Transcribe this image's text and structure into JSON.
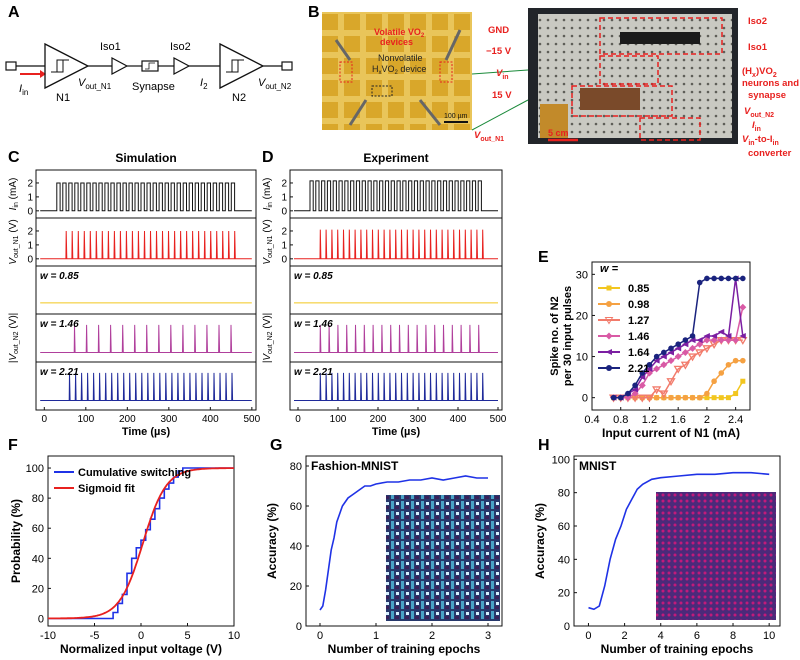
{
  "panel_labels": {
    "A": "A",
    "B": "B",
    "C": "C",
    "D": "D",
    "E": "E",
    "F": "F",
    "G": "G",
    "H": "H"
  },
  "schematic": {
    "input_label": "I",
    "input_sub": "in",
    "n1": "N1",
    "vout1": "V",
    "vout1_sub": "out_N1",
    "iso1": "Iso1",
    "synapse": "Synapse",
    "iso2": "Iso2",
    "i2": "I",
    "i2_sub": "2",
    "n2": "N2",
    "vout2": "V",
    "vout2_sub": "out_N2"
  },
  "photo": {
    "micro_label1": "Volatile VO",
    "micro_label1b": "devices",
    "micro_label2": "Nonvolatile",
    "micro_label2b": "H",
    "micro_label2c": "VO",
    "micro_label2d": " device",
    "scale_micro": "100 µm",
    "board_labels_left": [
      "GND",
      "−15 V",
      "V",
      "15 V",
      "V"
    ],
    "board_vin_sub": "in",
    "board_vout_sub": "out_N1",
    "board_labels_right": [
      "Iso2",
      "Iso1",
      "(H",
      "neurons and",
      "synapse",
      "V",
      "I",
      "V",
      "converter"
    ],
    "hx": "x",
    "vo2": ")VO",
    "vout_n2_sub": "out_N2",
    "iin_sub": "in",
    "vin_to": "in",
    "to_iin": "-to-I",
    "scale_board": "5 cm"
  },
  "colors": {
    "red": "#e8211f",
    "black": "#111111",
    "yellow": "#f2c61f",
    "magenta": "#b03f9c",
    "blue": "#1f2a9a",
    "orange": "#f5a142",
    "coral": "#f27b6b",
    "pink": "#d95aa5",
    "purple": "#7b1fa2",
    "navy": "#1a237e",
    "line_blue": "#1f32e6"
  },
  "chart_data": [
    {
      "panel": "C",
      "type": "line",
      "title": "Simulation",
      "xlabel": "Time (µs)",
      "xlim": [
        -20,
        510
      ],
      "xticks": [
        0,
        100,
        200,
        300,
        400,
        500
      ],
      "rows": [
        {
          "name": "Iin",
          "ylabel": "I",
          "ysub": "in",
          "yunit": " (mA)",
          "yticks": [
            0,
            1,
            2
          ],
          "ylim": [
            -0.3,
            2.5
          ],
          "color": "#111111",
          "pulse_start": 30,
          "pulse_end": 465,
          "period": 14.5,
          "amp": 2.0,
          "kind": "square"
        },
        {
          "name": "Vout_N1",
          "ylabel": "V",
          "ysub": "out_N1",
          "yunit": " (V)",
          "yticks": [
            0,
            1,
            2
          ],
          "ylim": [
            -0.3,
            2.5
          ],
          "color": "#e8211f",
          "pulse_start": 52,
          "pulse_end": 470,
          "period": 14.5,
          "amp": 2.0,
          "kind": "spike"
        },
        {
          "name": "w=0.85",
          "ylabel": "",
          "ysub": "",
          "yunit": "",
          "yticks": [],
          "ylim": [
            -0.2,
            1
          ],
          "color": "#f2c61f",
          "label": "w = 0.85",
          "kind": "flat"
        },
        {
          "name": "w=1.46",
          "ylabel": "|V",
          "ysub": "out_N2",
          "yunit": " (V)|",
          "yticks": [],
          "ylim": [
            -0.2,
            1
          ],
          "color": "#b03f9c",
          "label": "w = 1.46",
          "pulse_start": 72,
          "pulse_end": 460,
          "period": 29,
          "amp": 0.85,
          "kind": "spike"
        },
        {
          "name": "w=2.21",
          "ylabel": "",
          "ysub": "",
          "yunit": "",
          "yticks": [],
          "ylim": [
            -0.2,
            1
          ],
          "color": "#1f2a9a",
          "label": "w = 2.21",
          "pulse_start": 60,
          "pulse_end": 465,
          "period": 14.5,
          "amp": 0.85,
          "kind": "spike"
        }
      ]
    },
    {
      "panel": "D",
      "type": "line",
      "title": "Experiment",
      "xlabel": "Time (µs)",
      "xlim": [
        -20,
        510
      ],
      "xticks": [
        0,
        100,
        200,
        300,
        400,
        500
      ],
      "rows": [
        {
          "name": "Iin",
          "ylabel": "I",
          "ysub": "in",
          "yunit": " (mA)",
          "yticks": [
            0,
            1,
            2
          ],
          "ylim": [
            -0.3,
            2.5
          ],
          "color": "#111111",
          "pulse_start": 30,
          "pulse_end": 465,
          "period": 14.5,
          "amp": 2.15,
          "kind": "square"
        },
        {
          "name": "Vout_N1",
          "ylabel": "V",
          "ysub": "out_N1",
          "yunit": " (V)",
          "yticks": [
            0,
            1,
            2
          ],
          "ylim": [
            -0.3,
            2.5
          ],
          "color": "#e8211f",
          "pulse_start": 55,
          "pulse_end": 470,
          "period": 14.5,
          "amp": 2.1,
          "kind": "spike"
        },
        {
          "name": "w=0.85",
          "ylabel": "",
          "ysub": "",
          "yunit": "",
          "yticks": [],
          "ylim": [
            -0.2,
            1
          ],
          "color": "#f2c61f",
          "label": "w = 0.85",
          "kind": "flat"
        },
        {
          "name": "w=1.46",
          "ylabel": "|V",
          "ysub": "out_N2",
          "yunit": " (V)|",
          "yticks": [],
          "ylim": [
            -0.2,
            1
          ],
          "color": "#b03f9c",
          "label": "w = 1.46",
          "pulse_start": 55,
          "pulse_end": 465,
          "period": 22,
          "amp": 0.85,
          "kind": "spike"
        },
        {
          "name": "w=2.21",
          "ylabel": "",
          "ysub": "",
          "yunit": "",
          "yticks": [],
          "ylim": [
            -0.2,
            1
          ],
          "color": "#1f2a9a",
          "label": "w = 2.21",
          "pulse_start": 55,
          "pulse_end": 465,
          "period": 14.5,
          "amp": 0.85,
          "kind": "spike"
        }
      ]
    },
    {
      "panel": "E",
      "type": "line",
      "title": "",
      "legend_title": "w =",
      "xlabel": "Input current of N1 (mA)",
      "ylabel": "Spike no. of N2",
      "ylabel2": "per 30 input pulses",
      "xlim": [
        0.4,
        2.6
      ],
      "ylim": [
        -3,
        33
      ],
      "xticks": [
        0.4,
        0.8,
        1.2,
        1.6,
        2.0,
        2.4
      ],
      "yticks": [
        0,
        10,
        20,
        30
      ],
      "series": [
        {
          "name": "0.85",
          "color": "#f2c61f",
          "marker": "square",
          "x": [
            0.7,
            0.8,
            0.9,
            1.0,
            1.1,
            1.2,
            1.3,
            1.4,
            1.5,
            1.6,
            1.7,
            1.8,
            1.9,
            2.0,
            2.1,
            2.2,
            2.3,
            2.4,
            2.5
          ],
          "y": [
            0,
            0,
            0,
            0,
            0,
            0,
            0,
            0,
            0,
            0,
            0,
            0,
            0,
            0,
            0,
            0,
            0,
            1,
            4
          ]
        },
        {
          "name": "0.98",
          "color": "#f5a142",
          "marker": "circle",
          "x": [
            0.7,
            0.8,
            0.9,
            1.0,
            1.1,
            1.2,
            1.3,
            1.4,
            1.5,
            1.6,
            1.7,
            1.8,
            1.9,
            2.0,
            2.1,
            2.2,
            2.3,
            2.4,
            2.5
          ],
          "y": [
            0,
            0,
            0,
            0,
            0,
            0,
            0,
            0,
            0,
            0,
            0,
            0,
            0,
            1,
            4,
            6,
            8,
            9,
            9
          ]
        },
        {
          "name": "1.27",
          "color": "#f27b6b",
          "marker": "tri-down",
          "x": [
            0.7,
            0.8,
            0.9,
            1.0,
            1.1,
            1.2,
            1.3,
            1.4,
            1.5,
            1.6,
            1.7,
            1.8,
            1.9,
            2.0,
            2.1,
            2.2,
            2.3,
            2.4,
            2.5
          ],
          "y": [
            0,
            0,
            0,
            0,
            0,
            0,
            2,
            1,
            4,
            7,
            8,
            10,
            11,
            12,
            13,
            14,
            14,
            14,
            14
          ]
        },
        {
          "name": "1.46",
          "color": "#d95aa5",
          "marker": "diamond",
          "x": [
            0.7,
            0.8,
            0.9,
            1.0,
            1.1,
            1.2,
            1.3,
            1.4,
            1.5,
            1.6,
            1.7,
            1.8,
            1.9,
            2.0,
            2.1,
            2.2,
            2.3,
            2.4,
            2.5
          ],
          "y": [
            0,
            0,
            0,
            1,
            3,
            6,
            7,
            8,
            9,
            10,
            11,
            12,
            13,
            14,
            14,
            14,
            14,
            14,
            22
          ]
        },
        {
          "name": "1.64",
          "color": "#7b1fa2",
          "marker": "tri-left",
          "x": [
            0.7,
            0.8,
            0.9,
            1.0,
            1.1,
            1.2,
            1.3,
            1.4,
            1.5,
            1.6,
            1.7,
            1.8,
            1.9,
            2.0,
            2.1,
            2.2,
            2.3,
            2.4,
            2.5
          ],
          "y": [
            0,
            0,
            1,
            2,
            5,
            7,
            9,
            10,
            11,
            12,
            13,
            14,
            14,
            15,
            15,
            16,
            15,
            29,
            15
          ]
        },
        {
          "name": "2.21",
          "color": "#1a237e",
          "marker": "circle",
          "x": [
            0.7,
            0.8,
            0.9,
            1.0,
            1.1,
            1.2,
            1.3,
            1.4,
            1.5,
            1.6,
            1.7,
            1.8,
            1.9,
            2.0,
            2.1,
            2.2,
            2.3,
            2.4,
            2.5
          ],
          "y": [
            0,
            0,
            1,
            3,
            6,
            8,
            10,
            11,
            12,
            13,
            14,
            15,
            28,
            29,
            29,
            29,
            29,
            29,
            29
          ]
        }
      ]
    },
    {
      "panel": "F",
      "type": "line",
      "xlabel": "Normalized input voltage (V)",
      "ylabel": "Probability (%)",
      "xlim": [
        -10,
        10
      ],
      "ylim": [
        -5,
        108
      ],
      "xticks": [
        -10,
        -5,
        0,
        5,
        10
      ],
      "yticks": [
        0,
        20,
        40,
        60,
        80,
        100
      ],
      "series": [
        {
          "name": "Cumulative switching",
          "color": "#1f32e6",
          "style": "step",
          "x": [
            -10,
            -3.5,
            -3,
            -2.5,
            -2,
            -1.5,
            -1,
            -0.5,
            0,
            0.5,
            1,
            1.5,
            2,
            2.5,
            3,
            3.5,
            4,
            4.5,
            5,
            10
          ],
          "y": [
            0,
            0,
            4,
            10,
            16,
            30,
            40,
            47,
            52,
            59,
            66,
            73,
            80,
            86,
            90,
            94,
            98,
            100,
            100,
            100
          ]
        },
        {
          "name": "Sigmoid fit",
          "color": "#e8211f",
          "style": "sigmoid",
          "center": 0.2,
          "scale": 1.25
        }
      ]
    },
    {
      "panel": "G",
      "type": "line",
      "title": "Fashion-MNIST",
      "xlabel": "Number of training epochs",
      "ylabel": "Accuracy (%)",
      "xlim": [
        -0.25,
        3.25
      ],
      "ylim": [
        0,
        85
      ],
      "xticks": [
        0,
        1,
        2,
        3
      ],
      "yticks": [
        0,
        20,
        40,
        60,
        80
      ],
      "series": [
        {
          "name": "accuracy",
          "color": "#1f32e6",
          "x": [
            0,
            0.05,
            0.1,
            0.15,
            0.2,
            0.25,
            0.3,
            0.35,
            0.4,
            0.5,
            0.6,
            0.7,
            0.8,
            0.9,
            1.0,
            1.2,
            1.4,
            1.6,
            1.8,
            2.0,
            2.2,
            2.4,
            2.6,
            2.8,
            3.0
          ],
          "y": [
            8,
            10,
            18,
            28,
            38,
            44,
            52,
            56,
            60,
            64,
            66,
            68,
            70,
            70,
            71,
            72,
            72,
            73,
            73,
            74,
            73,
            74,
            75,
            74,
            74
          ]
        }
      ]
    },
    {
      "panel": "H",
      "type": "line",
      "title": "MNIST",
      "xlabel": "Number of training epochs",
      "ylabel": "Accuracy (%)",
      "xlim": [
        -0.8,
        10.6
      ],
      "ylim": [
        0,
        102
      ],
      "xticks": [
        0,
        2,
        4,
        6,
        8,
        10
      ],
      "yticks": [
        0,
        20,
        40,
        60,
        80,
        100
      ],
      "series": [
        {
          "name": "accuracy",
          "color": "#1f32e6",
          "x": [
            0,
            0.3,
            0.6,
            0.9,
            1.2,
            1.5,
            1.8,
            2.1,
            2.4,
            2.7,
            3.0,
            3.5,
            4,
            5,
            6,
            7,
            8,
            9,
            10
          ],
          "y": [
            11,
            10,
            12,
            24,
            40,
            52,
            60,
            70,
            76,
            82,
            85,
            88,
            89,
            90,
            91,
            91,
            92,
            92,
            91
          ]
        }
      ]
    }
  ]
}
